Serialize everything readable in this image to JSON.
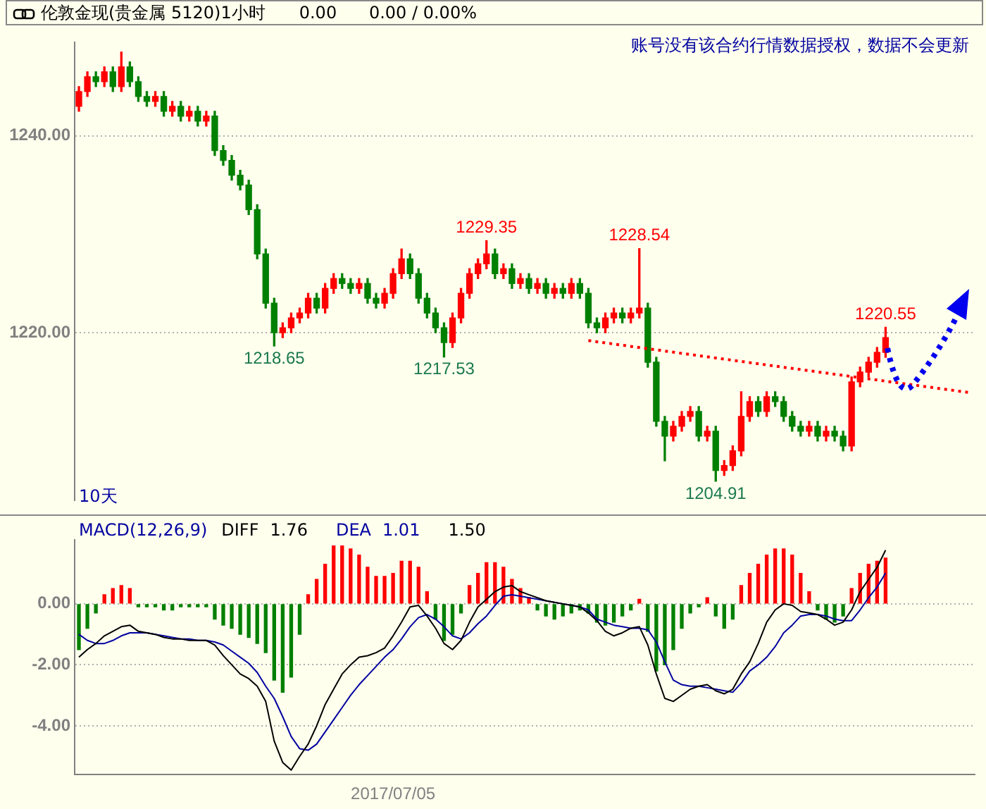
{
  "chart_data": [
    {
      "type": "candlestick",
      "title": "伦敦金现(贵金属 5120)1小时",
      "subtitle": "0.00      0.00 / 0.00%",
      "annotations": [
        "账号没有该合约行情数据授权，数据不会更新",
        "10天",
        {
          "text": "1218.65",
          "y": 1218.65
        },
        {
          "text": "1217.53",
          "y": 1217.53
        },
        {
          "text": "1229.35",
          "y": 1229.35
        },
        {
          "text": "1228.54",
          "y": 1228.54
        },
        {
          "text": "1204.91",
          "y": 1204.91
        },
        {
          "text": "1220.55",
          "y": 1220.55
        }
      ],
      "categories": [
        null,
        null,
        null,
        null,
        null,
        null,
        null,
        null,
        null,
        null,
        null,
        null,
        null,
        null,
        null,
        null,
        null,
        null,
        null,
        null,
        null,
        null,
        null,
        null,
        null,
        null,
        null,
        null,
        null,
        null,
        null,
        null,
        null,
        null,
        null,
        null,
        null,
        null,
        null,
        null,
        null,
        null,
        null,
        null,
        null,
        null,
        null,
        null,
        null,
        null,
        null,
        null,
        null,
        null,
        null,
        null,
        null,
        null,
        null,
        null,
        null,
        null,
        null,
        null,
        null,
        null,
        null,
        null,
        null,
        null,
        null,
        null,
        null,
        null,
        null,
        null,
        null,
        null,
        null,
        null,
        null,
        null,
        null,
        null,
        null,
        null,
        null,
        null,
        null,
        null,
        null,
        null,
        null,
        null,
        null,
        null,
        null,
        null,
        null,
        null,
        null,
        null,
        null,
        null,
        null,
        null
      ],
      "ohlc": [
        [
          1243,
          1245,
          1242.5,
          1244.5
        ],
        [
          1244.5,
          1246.5,
          1244,
          1246
        ],
        [
          1246,
          1246.5,
          1245,
          1245.5
        ],
        [
          1245.5,
          1247,
          1245,
          1246.5
        ],
        [
          1246.5,
          1247,
          1244.5,
          1245
        ],
        [
          1245,
          1248.5,
          1244.5,
          1247
        ],
        [
          1247,
          1247.5,
          1245,
          1245.5
        ],
        [
          1245.5,
          1246,
          1243.5,
          1244
        ],
        [
          1244,
          1244.5,
          1243,
          1243.5
        ],
        [
          1243.5,
          1244.5,
          1243,
          1244
        ],
        [
          1244,
          1244.5,
          1242,
          1242.5
        ],
        [
          1242.5,
          1243.5,
          1242,
          1243
        ],
        [
          1243,
          1243.5,
          1241.5,
          1242
        ],
        [
          1242,
          1243,
          1241.5,
          1242.5
        ],
        [
          1242.5,
          1243,
          1241,
          1241.5
        ],
        [
          1241.5,
          1242.5,
          1241,
          1242
        ],
        [
          1242,
          1242.5,
          1238,
          1238.5
        ],
        [
          1238.5,
          1239,
          1237,
          1237.5
        ],
        [
          1237.5,
          1238,
          1235.5,
          1236
        ],
        [
          1236,
          1236.5,
          1234.5,
          1235
        ],
        [
          1235,
          1235.5,
          1232,
          1232.5
        ],
        [
          1232.5,
          1233,
          1227.5,
          1228
        ],
        [
          1228,
          1228.5,
          1222.5,
          1223
        ],
        [
          1223,
          1223.5,
          1218.65,
          1220
        ],
        [
          1220,
          1221,
          1219.5,
          1220.5
        ],
        [
          1220.5,
          1222,
          1220,
          1221.5
        ],
        [
          1221.5,
          1222.5,
          1221,
          1222
        ],
        [
          1222,
          1224,
          1221.5,
          1223.5
        ],
        [
          1223.5,
          1224,
          1222,
          1222.5
        ],
        [
          1222.5,
          1225,
          1222,
          1224.5
        ],
        [
          1224.5,
          1226,
          1224,
          1225.5
        ],
        [
          1225.5,
          1226,
          1224.5,
          1225
        ],
        [
          1225,
          1225.5,
          1224,
          1224.5
        ],
        [
          1224.5,
          1225.5,
          1224,
          1225
        ],
        [
          1225,
          1225.5,
          1223,
          1223.5
        ],
        [
          1223.5,
          1224,
          1222.5,
          1223
        ],
        [
          1223,
          1224.5,
          1222.5,
          1224
        ],
        [
          1224,
          1226.5,
          1223.5,
          1226
        ],
        [
          1226,
          1228.5,
          1225.5,
          1227.5
        ],
        [
          1227.5,
          1228,
          1225.5,
          1226
        ],
        [
          1226,
          1226.5,
          1223,
          1223.5
        ],
        [
          1223.5,
          1224,
          1221.5,
          1222
        ],
        [
          1222,
          1222.5,
          1220,
          1220.5
        ],
        [
          1220.5,
          1221,
          1217.53,
          1219
        ],
        [
          1219,
          1222,
          1218.5,
          1221.5
        ],
        [
          1221.5,
          1224.5,
          1221,
          1224
        ],
        [
          1224,
          1226.5,
          1223.5,
          1226
        ],
        [
          1226,
          1227.5,
          1225.5,
          1227
        ],
        [
          1227,
          1229.35,
          1226.5,
          1228
        ],
        [
          1228,
          1228.5,
          1225.5,
          1226
        ],
        [
          1226,
          1227,
          1225.5,
          1226.5
        ],
        [
          1226.5,
          1227,
          1224.5,
          1225
        ],
        [
          1225,
          1226,
          1224.5,
          1225.5
        ],
        [
          1225.5,
          1226,
          1224,
          1224.5
        ],
        [
          1224.5,
          1225.5,
          1224,
          1225
        ],
        [
          1225,
          1225.5,
          1223.5,
          1224
        ],
        [
          1224,
          1225,
          1223.5,
          1224.5
        ],
        [
          1224.5,
          1225,
          1223.5,
          1224
        ],
        [
          1224,
          1225.5,
          1223.5,
          1225
        ],
        [
          1225,
          1225.5,
          1223.5,
          1224
        ],
        [
          1224,
          1224.5,
          1220.5,
          1221
        ],
        [
          1221,
          1221.5,
          1220,
          1220.5
        ],
        [
          1220.5,
          1222,
          1220,
          1221.5
        ],
        [
          1221.5,
          1222.5,
          1221,
          1222
        ],
        [
          1222,
          1222.5,
          1221,
          1221.5
        ],
        [
          1221.5,
          1222.5,
          1221,
          1222
        ],
        [
          1222,
          1228.54,
          1221.5,
          1222.5
        ],
        [
          1222.5,
          1223,
          1216.5,
          1217
        ],
        [
          1217,
          1217.5,
          1210.5,
          1211
        ],
        [
          1211,
          1211.5,
          1207,
          1209.5
        ],
        [
          1209.5,
          1211,
          1209,
          1210.5
        ],
        [
          1210.5,
          1212,
          1210,
          1211.5
        ],
        [
          1211.5,
          1212.5,
          1211,
          1212
        ],
        [
          1212,
          1212.5,
          1209,
          1209.5
        ],
        [
          1209.5,
          1210.5,
          1209,
          1210
        ],
        [
          1210,
          1210.5,
          1204.91,
          1206
        ],
        [
          1206,
          1207,
          1205.5,
          1206.5
        ],
        [
          1206.5,
          1208.5,
          1206,
          1208
        ],
        [
          1208,
          1214,
          1207.5,
          1211.5
        ],
        [
          1211.5,
          1213.5,
          1211,
          1213
        ],
        [
          1213,
          1213.5,
          1211.5,
          1212
        ],
        [
          1212,
          1214,
          1211.5,
          1213.5
        ],
        [
          1213.5,
          1214,
          1212.5,
          1213
        ],
        [
          1213,
          1213.5,
          1211,
          1211.5
        ],
        [
          1211.5,
          1212,
          1210,
          1210.5
        ],
        [
          1210.5,
          1211,
          1209.5,
          1210
        ],
        [
          1210,
          1211,
          1209.5,
          1210.5
        ],
        [
          1210.5,
          1211,
          1209,
          1209.5
        ],
        [
          1209.5,
          1210.5,
          1209,
          1210
        ],
        [
          1210,
          1210.5,
          1209,
          1209.5
        ],
        [
          1209.5,
          1210,
          1208,
          1208.5
        ],
        [
          1208.5,
          1215.5,
          1208,
          1215
        ],
        [
          1215,
          1216.5,
          1214.5,
          1216
        ],
        [
          1216,
          1217.5,
          1215.5,
          1217
        ],
        [
          1217,
          1218.5,
          1216.5,
          1218
        ],
        [
          1218,
          1220.55,
          1217.5,
          1219.5
        ],
        null,
        null,
        null,
        null,
        null,
        null,
        null,
        null,
        null,
        null
      ],
      "colors": [
        "#ff0000",
        "#ff0000",
        "#008000",
        "#ff0000",
        "#008000",
        "#ff0000",
        "#008000",
        "#008000",
        "#008000",
        "#ff0000",
        "#008000",
        "#ff0000",
        "#008000",
        "#ff0000",
        "#008000",
        "#ff0000",
        "#008000",
        "#008000",
        "#008000",
        "#008000",
        "#008000",
        "#008000",
        "#008000",
        "#008000",
        "#ff0000",
        "#ff0000",
        "#ff0000",
        "#ff0000",
        "#008000",
        "#ff0000",
        "#ff0000",
        "#008000",
        "#008000",
        "#ff0000",
        "#008000",
        "#008000",
        "#ff0000",
        "#ff0000",
        "#ff0000",
        "#008000",
        "#008000",
        "#008000",
        "#008000",
        "#008000",
        "#ff0000",
        "#ff0000",
        "#ff0000",
        "#ff0000",
        "#ff0000",
        "#008000",
        "#ff0000",
        "#008000",
        "#ff0000",
        "#008000",
        "#ff0000",
        "#008000",
        "#ff0000",
        "#008000",
        "#ff0000",
        "#008000",
        "#008000",
        "#008000",
        "#ff0000",
        "#ff0000",
        "#008000",
        "#ff0000",
        "#ff0000",
        "#008000",
        "#008000",
        "#008000",
        "#ff0000",
        "#ff0000",
        "#ff0000",
        "#008000",
        "#ff0000",
        "#008000",
        "#ff0000",
        "#ff0000",
        "#ff0000",
        "#ff0000",
        "#008000",
        "#ff0000",
        "#008000",
        "#008000",
        "#008000",
        "#008000",
        "#ff0000",
        "#008000",
        "#ff0000",
        "#008000",
        "#008000",
        "#ff0000",
        "#ff0000",
        "#ff0000",
        "#ff0000",
        "#ff0000",
        null,
        null,
        null,
        null,
        null,
        null,
        null,
        null,
        null,
        null
      ],
      "series": [
        {
          "type": "line",
          "color": "#ff0000",
          "line_style": "dotted",
          "values": [
            null,
            null,
            null,
            null,
            null,
            null,
            null,
            null,
            null,
            null,
            null,
            null,
            null,
            null,
            null,
            null,
            null,
            null,
            null,
            null,
            null,
            null,
            null,
            null,
            null,
            null,
            null,
            null,
            null,
            null,
            null,
            null,
            null,
            null,
            null,
            null,
            null,
            null,
            null,
            null,
            null,
            null,
            null,
            null,
            null,
            null,
            null,
            null,
            null,
            null,
            null,
            null,
            null,
            null,
            null,
            null,
            null,
            null,
            null,
            null,
            1219.2,
            null,
            null,
            null,
            null,
            null,
            null,
            null,
            null,
            null,
            null,
            null,
            null,
            null,
            null,
            null,
            null,
            null,
            null,
            null,
            null,
            null,
            null,
            null,
            null,
            null,
            null,
            null,
            null,
            null,
            null,
            null,
            null,
            null,
            null,
            null,
            null,
            null,
            null,
            null,
            null,
            null,
            null,
            null,
            null,
            1213.9
          ]
        }
      ],
      "ylim": [
        1203,
        1249.5
      ],
      "yticks": [
        {
          "value": 1220,
          "label": "1220.00"
        },
        {
          "value": 1240,
          "label": "1240.00"
        }
      ],
      "grid": "y",
      "tick_labels": "y"
    },
    {
      "type": "bar",
      "title": "MACD(12,26,9)",
      "annotations": [
        "1.76",
        "1.01",
        "1.50"
      ],
      "categories": [
        null,
        null,
        null,
        null,
        null,
        null,
        null,
        null,
        null,
        null,
        null,
        null,
        null,
        null,
        null,
        null,
        null,
        null,
        null,
        null,
        null,
        null,
        null,
        null,
        null,
        null,
        null,
        null,
        null,
        null,
        null,
        null,
        null,
        null,
        null,
        null,
        null,
        "2017/07/05",
        null,
        null,
        null,
        null,
        null,
        null,
        null,
        null,
        null,
        null,
        null,
        null,
        null,
        null,
        null,
        null,
        null,
        null,
        null,
        null,
        null,
        null,
        null,
        null,
        null,
        null,
        null,
        null,
        null,
        null,
        null,
        null,
        null,
        null,
        null,
        null,
        null,
        null,
        null,
        null,
        null,
        null,
        null,
        null,
        null,
        null,
        null,
        null,
        null,
        null,
        null,
        null,
        null,
        null,
        null,
        null,
        null,
        null,
        null,
        null,
        null,
        null,
        null,
        null,
        null,
        null,
        null,
        null
      ],
      "series": [
        {
          "colors": [
            "#008000",
            "#008000",
            "#008000",
            "#ff0000",
            "#ff0000",
            "#ff0000",
            "#ff0000",
            "#008000",
            "#008000",
            "#008000",
            "#008000",
            "#008000",
            "#008000",
            "#008000",
            "#008000",
            "#008000",
            "#008000",
            "#008000",
            "#008000",
            "#008000",
            "#008000",
            "#008000",
            "#008000",
            "#008000",
            "#008000",
            "#008000",
            "#008000",
            "#ff0000",
            "#ff0000",
            "#ff0000",
            "#ff0000",
            "#ff0000",
            "#ff0000",
            "#ff0000",
            "#ff0000",
            "#ff0000",
            "#ff0000",
            "#ff0000",
            "#ff0000",
            "#ff0000",
            "#ff0000",
            "#ff0000",
            "#008000",
            "#008000",
            "#008000",
            "#008000",
            "#ff0000",
            "#ff0000",
            "#ff0000",
            "#ff0000",
            "#ff0000",
            "#ff0000",
            "#ff0000",
            "#ff0000",
            "#008000",
            "#008000",
            "#008000",
            "#008000",
            "#008000",
            "#008000",
            "#008000",
            "#008000",
            "#008000",
            "#008000",
            "#008000",
            "#008000",
            "#ff0000",
            "#008000",
            "#008000",
            "#008000",
            "#008000",
            "#008000",
            "#008000",
            "#008000",
            "#ff0000",
            "#008000",
            "#008000",
            "#008000",
            "#ff0000",
            "#ff0000",
            "#ff0000",
            "#ff0000",
            "#ff0000",
            "#ff0000",
            "#ff0000",
            "#ff0000",
            "#ff0000",
            "#008000",
            "#008000",
            "#008000",
            "#008000",
            "#ff0000",
            "#ff0000",
            "#ff0000",
            "#ff0000",
            "#ff0000",
            null,
            null,
            null,
            null,
            null,
            null,
            null,
            null,
            null,
            null
          ],
          "values": [
            -1.5,
            -0.8,
            -0.3,
            0.3,
            0.5,
            0.6,
            0.5,
            -0.1,
            -0.1,
            -0.1,
            -0.2,
            -0.2,
            -0.1,
            -0.1,
            -0.1,
            -0.1,
            -0.5,
            -0.7,
            -0.8,
            -1.0,
            -1.1,
            -1.3,
            -1.6,
            -2.5,
            -2.9,
            -2.4,
            -1.0,
            0.3,
            0.8,
            1.3,
            1.9,
            1.9,
            1.8,
            1.6,
            1.2,
            0.9,
            0.9,
            1.0,
            1.4,
            1.4,
            1.2,
            0.4,
            -0.5,
            -1.2,
            -1.0,
            -0.3,
            0.6,
            1.0,
            1.35,
            1.35,
            1.2,
            0.8,
            0.5,
            0.2,
            -0.2,
            -0.4,
            -0.5,
            -0.4,
            -0.3,
            -0.2,
            -0.3,
            -0.6,
            -0.7,
            -0.6,
            -0.4,
            -0.2,
            0.15,
            -0.9,
            -2.2,
            -2.0,
            -1.5,
            -0.8,
            -0.3,
            -0.1,
            0.2,
            -0.4,
            -0.8,
            -0.5,
            0.6,
            1.0,
            1.3,
            1.6,
            1.8,
            1.8,
            1.6,
            1.0,
            0.4,
            -0.2,
            -0.5,
            -0.6,
            -0.4,
            0.5,
            1.0,
            1.3,
            1.4,
            1.5,
            null,
            null,
            null,
            null,
            null,
            null,
            null,
            null,
            null,
            null
          ]
        },
        {
          "type": "line",
          "name": "DIFF",
          "color": "#000000",
          "values": [
            -1.75,
            -1.5,
            -1.3,
            -1.05,
            -0.9,
            -0.75,
            -0.7,
            -0.9,
            -0.95,
            -1.0,
            -1.1,
            -1.15,
            -1.15,
            -1.2,
            -1.2,
            -1.2,
            -1.35,
            -1.7,
            -2.0,
            -2.3,
            -2.45,
            -2.7,
            -3.2,
            -4.5,
            -5.2,
            -5.45,
            -5.0,
            -4.6,
            -4.0,
            -3.3,
            -2.8,
            -2.3,
            -2.0,
            -1.75,
            -1.7,
            -1.6,
            -1.45,
            -1.05,
            -0.6,
            -0.1,
            -0.05,
            -0.4,
            -0.8,
            -1.3,
            -1.5,
            -1.2,
            -0.6,
            -0.1,
            0.15,
            0.4,
            0.55,
            0.6,
            0.4,
            0.3,
            0.2,
            0.1,
            0.05,
            0.0,
            -0.05,
            -0.1,
            -0.3,
            -0.55,
            -0.9,
            -1.05,
            -0.95,
            -0.8,
            -0.75,
            -1.35,
            -2.3,
            -3.1,
            -3.2,
            -3.0,
            -2.8,
            -2.7,
            -2.65,
            -2.85,
            -2.95,
            -2.8,
            -2.3,
            -1.9,
            -1.3,
            -0.6,
            -0.2,
            0.0,
            -0.05,
            -0.25,
            -0.3,
            -0.35,
            -0.5,
            -0.7,
            -0.6,
            -0.2,
            0.4,
            0.8,
            1.2,
            1.76,
            null,
            null,
            null,
            null,
            null,
            null,
            null,
            null,
            null,
            null
          ]
        },
        {
          "type": "line",
          "name": "DEA",
          "color": "#0000a0",
          "values": [
            -1.0,
            -1.2,
            -1.3,
            -1.3,
            -1.2,
            -1.05,
            -0.95,
            -0.95,
            -0.95,
            -1.0,
            -1.05,
            -1.1,
            -1.15,
            -1.15,
            -1.2,
            -1.2,
            -1.25,
            -1.35,
            -1.55,
            -1.75,
            -1.95,
            -2.25,
            -2.7,
            -3.1,
            -3.7,
            -4.35,
            -4.75,
            -4.8,
            -4.6,
            -4.2,
            -3.8,
            -3.4,
            -3.0,
            -2.65,
            -2.35,
            -2.05,
            -1.75,
            -1.5,
            -1.15,
            -0.75,
            -0.45,
            -0.35,
            -0.5,
            -0.75,
            -1.05,
            -1.15,
            -0.95,
            -0.65,
            -0.4,
            -0.05,
            0.25,
            0.3,
            0.25,
            0.2,
            0.15,
            0.1,
            0.05,
            0.0,
            -0.05,
            -0.1,
            -0.2,
            -0.5,
            -0.6,
            -0.7,
            -0.75,
            -0.8,
            -0.8,
            -0.85,
            -1.25,
            -1.9,
            -2.5,
            -2.65,
            -2.7,
            -2.7,
            -2.75,
            -2.8,
            -2.85,
            -2.9,
            -2.6,
            -2.2,
            -2.0,
            -1.75,
            -1.4,
            -0.95,
            -0.7,
            -0.4,
            -0.35,
            -0.35,
            -0.4,
            -0.5,
            -0.55,
            -0.55,
            -0.2,
            0.2,
            0.55,
            1.01,
            null,
            null,
            null,
            null,
            null,
            null,
            null,
            null,
            null,
            null
          ]
        }
      ],
      "ylim": [
        -5.6,
        2.1
      ],
      "yticks": [
        {
          "value": -4,
          "label": "-4.00"
        },
        {
          "value": -2,
          "label": "-2.00"
        },
        {
          "value": 0,
          "label": "0.00"
        }
      ],
      "grid": "y",
      "legend": "top left"
    }
  ]
}
